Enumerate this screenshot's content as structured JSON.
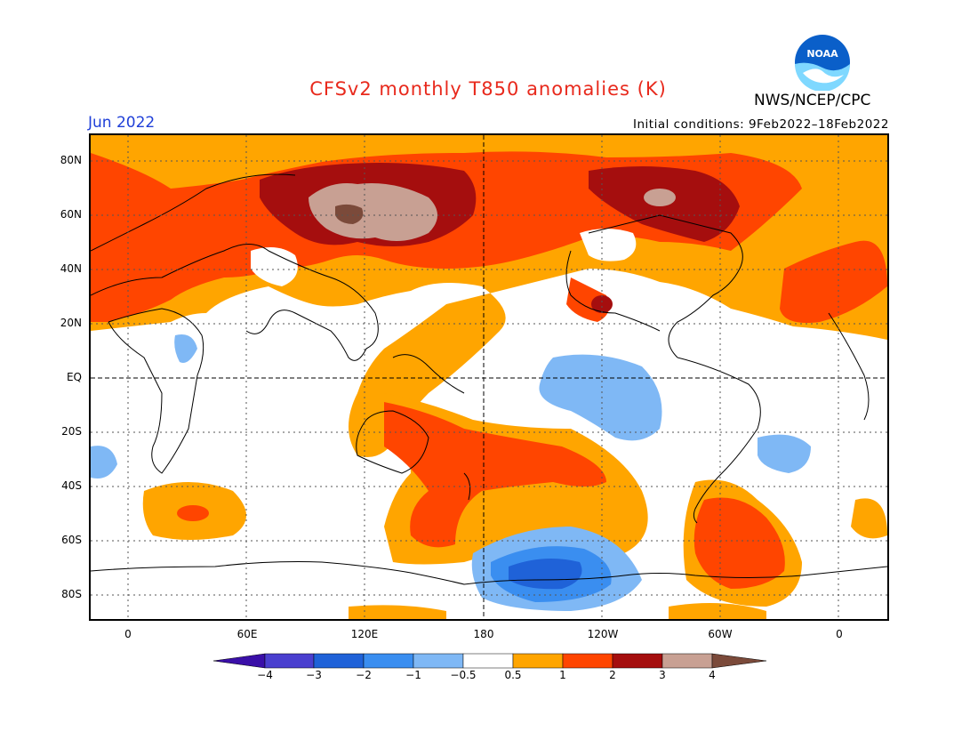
{
  "header": {
    "title": "CFSv2 monthly T850 anomalies (K)",
    "month": "Jun 2022",
    "org": "NWS/NCEP/CPC",
    "initial_conditions": "Initial conditions: 9Feb2022–18Feb2022",
    "logo_text": "NOAA"
  },
  "map": {
    "lat_labels": [
      "80N",
      "60N",
      "40N",
      "20N",
      "EQ",
      "20S",
      "40S",
      "60S",
      "80S"
    ],
    "lon_labels": [
      "0",
      "60E",
      "120E",
      "180",
      "120W",
      "60W",
      "0"
    ]
  },
  "colorbar": {
    "labels": [
      "−4",
      "−3",
      "−2",
      "−1",
      "−0.5",
      "0.5",
      "1",
      "2",
      "3",
      "4"
    ],
    "colors": [
      "#3a0fa8",
      "#4a3fcf",
      "#1f62d8",
      "#3a8ef0",
      "#7fb8f5",
      "#ffffff",
      "#ffa500",
      "#ff4500",
      "#a50e0e",
      "#c8a093",
      "#7b4a3a",
      "#1a0070"
    ]
  },
  "colors": {
    "title": "#e8291c",
    "month": "#1f3fd8"
  }
}
